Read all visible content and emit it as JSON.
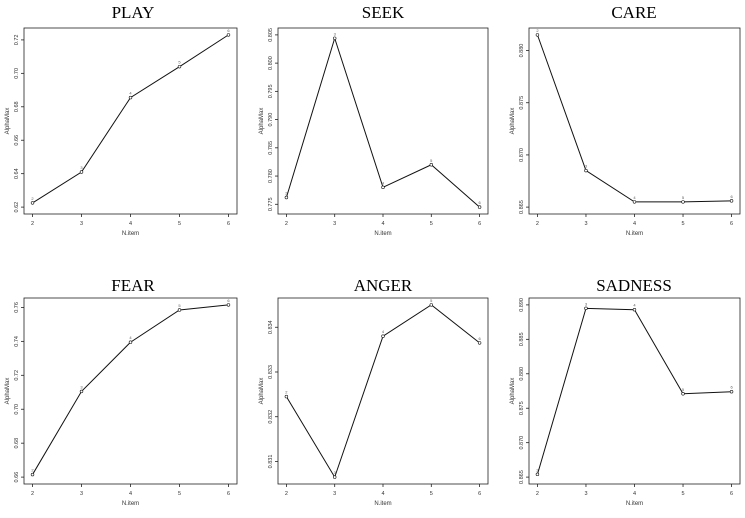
{
  "chart_data": [
    {
      "type": "line",
      "title": "PLAY",
      "xlabel": "N.item",
      "ylabel": "AlphaMax",
      "x": [
        2,
        3,
        4,
        5,
        6
      ],
      "xticks": [
        "2",
        "3",
        "4",
        "5",
        "6"
      ],
      "ylim": [
        0.62,
        0.72
      ],
      "yticks": [
        0.62,
        0.64,
        0.66,
        0.68,
        0.7,
        0.72
      ],
      "ytick_labels": [
        "0.62",
        "0.64",
        "0.66",
        "0.68",
        "0.70",
        "0.72"
      ],
      "series": [
        {
          "values": [
            0.6225,
            0.641,
            0.6855,
            0.704,
            0.723
          ],
          "point_labels": [
            "2",
            "3",
            "4",
            "5",
            "6"
          ]
        }
      ]
    },
    {
      "type": "line",
      "title": "SEEK",
      "xlabel": "N.item",
      "ylabel": "AlphaMax",
      "x": [
        2,
        3,
        4,
        5,
        6
      ],
      "xticks": [
        "2",
        "3",
        "4",
        "5",
        "6"
      ],
      "ylim": [
        0.775,
        0.805
      ],
      "yticks": [
        0.775,
        0.78,
        0.785,
        0.79,
        0.795,
        0.8,
        0.805
      ],
      "ytick_labels": [
        "0.775",
        "0.780",
        "0.785",
        "0.790",
        "0.795",
        "0.800",
        "0.805"
      ],
      "series": [
        {
          "values": [
            0.7762,
            0.8044,
            0.778,
            0.782,
            0.7745
          ],
          "point_labels": [
            "2",
            "3",
            "4",
            "5",
            "6"
          ]
        }
      ]
    },
    {
      "type": "line",
      "title": "CARE",
      "xlabel": "N.item",
      "ylabel": "AlphaMax",
      "x": [
        2,
        3,
        4,
        5,
        6
      ],
      "xticks": [
        "2",
        "3",
        "4",
        "5",
        "6"
      ],
      "ylim": [
        0.865,
        0.88
      ],
      "yticks": [
        0.865,
        0.87,
        0.875,
        0.88
      ],
      "ytick_labels": [
        "0.865",
        "0.870",
        "0.875",
        "0.880"
      ],
      "series": [
        {
          "values": [
            0.8815,
            0.8685,
            0.8655,
            0.8655,
            0.8656
          ],
          "point_labels": [
            "2",
            "3",
            "4",
            "5",
            "6"
          ]
        }
      ]
    },
    {
      "type": "line",
      "title": "FEAR",
      "xlabel": "N.item",
      "ylabel": "AlphaMax",
      "x": [
        2,
        3,
        4,
        5,
        6
      ],
      "xticks": [
        "2",
        "3",
        "4",
        "5",
        "6"
      ],
      "ylim": [
        0.66,
        0.76
      ],
      "yticks": [
        0.66,
        0.68,
        0.7,
        0.72,
        0.74,
        0.76
      ],
      "ytick_labels": [
        "0.66",
        "0.68",
        "0.70",
        "0.72",
        "0.74",
        "0.76"
      ],
      "series": [
        {
          "values": [
            0.6615,
            0.7105,
            0.7395,
            0.7585,
            0.7615
          ],
          "point_labels": [
            "2",
            "3",
            "4",
            "5",
            "6"
          ]
        }
      ]
    },
    {
      "type": "line",
      "title": "ANGER",
      "xlabel": "N.item",
      "ylabel": "AlphaMax",
      "x": [
        2,
        3,
        4,
        5,
        6
      ],
      "xticks": [
        "2",
        "3",
        "4",
        "5",
        "6"
      ],
      "ylim": [
        0.831,
        0.834
      ],
      "yticks": [
        0.831,
        0.832,
        0.833,
        0.834
      ],
      "ytick_labels": [
        "0.831",
        "0.832",
        "0.833",
        "0.834"
      ],
      "series": [
        {
          "values": [
            0.83245,
            0.83065,
            0.8338,
            0.8345,
            0.83365
          ],
          "point_labels": [
            "2",
            "3",
            "4",
            "5",
            "6"
          ]
        }
      ]
    },
    {
      "type": "line",
      "title": "SADNESS",
      "xlabel": "N.item",
      "ylabel": "AlphaMax",
      "x": [
        2,
        3,
        4,
        5,
        6
      ],
      "xticks": [
        "2",
        "3",
        "4",
        "5",
        "6"
      ],
      "ylim": [
        0.865,
        0.89
      ],
      "yticks": [
        0.865,
        0.87,
        0.875,
        0.88,
        0.885,
        0.89
      ],
      "ytick_labels": [
        "0.865",
        "0.870",
        "0.875",
        "0.880",
        "0.885",
        "0.890"
      ],
      "series": [
        {
          "values": [
            0.8654,
            0.8895,
            0.8893,
            0.8771,
            0.8774
          ],
          "point_labels": [
            "2",
            "3",
            "4",
            "5",
            "6"
          ]
        }
      ]
    }
  ]
}
